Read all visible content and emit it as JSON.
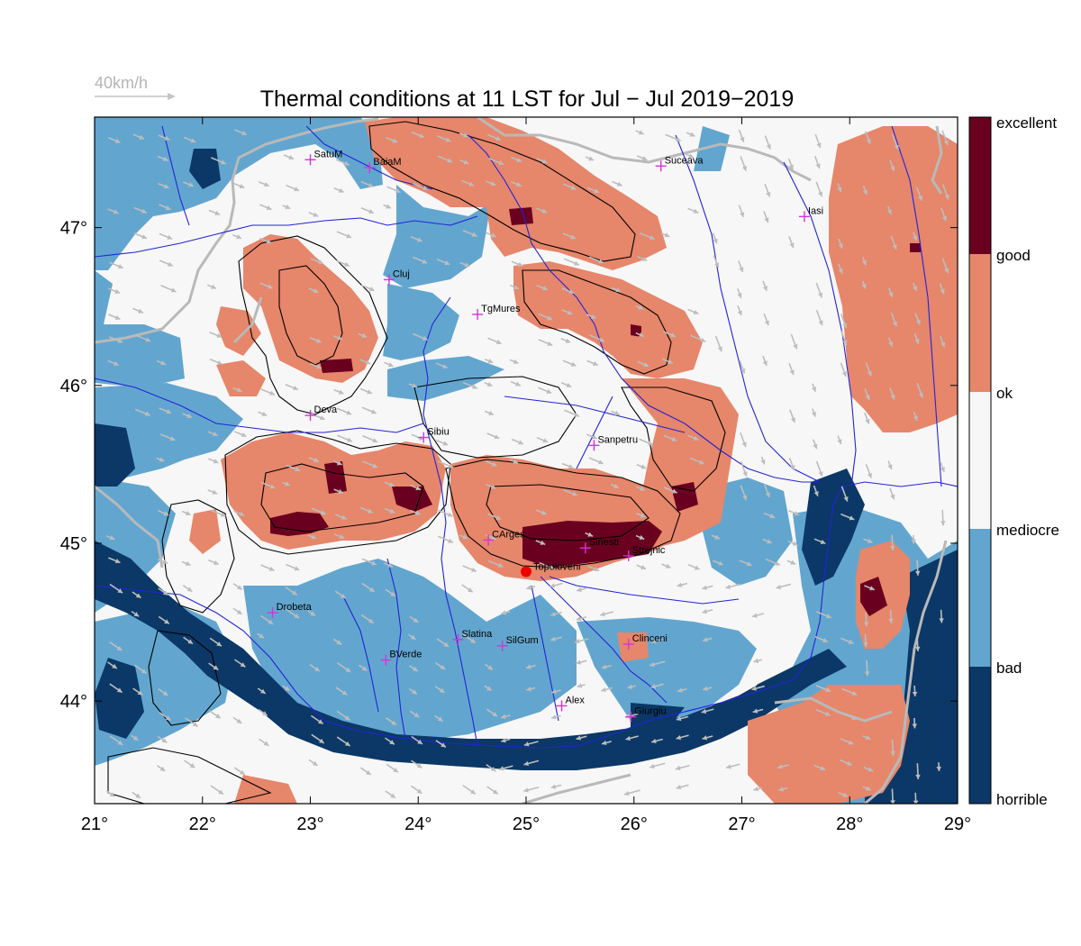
{
  "title": "Thermal conditions at 11 LST for Jul − Jul  2019−2019",
  "wind_scale": {
    "label": "40km/h"
  },
  "map": {
    "lon_range": [
      21,
      29
    ],
    "lat_range": [
      43.35,
      47.7
    ],
    "lon_ticks": [
      "21°",
      "22°",
      "23°",
      "24°",
      "25°",
      "26°",
      "27°",
      "28°",
      "29°"
    ],
    "lat_ticks": [
      "44°",
      "45°",
      "46°",
      "47°"
    ],
    "colors": {
      "horrible": "#0b3866",
      "bad": "#62a6cf",
      "mediocre": "#f7f7f7",
      "good": "#e6866b",
      "excellent": "#6a0020",
      "river": "#2323d8",
      "border": "#b9b9b9",
      "city_marker": "#d733d7",
      "launch_site": "#ee0000"
    },
    "launch_site": {
      "name": "Topoloveni",
      "lon": 25.0,
      "lat": 44.82
    }
  },
  "legend": {
    "labels": [
      "excellent",
      "good",
      "ok",
      "mediocre",
      "bad",
      "horrible"
    ]
  },
  "cities": [
    {
      "name": "SatuM",
      "lon": 23.0,
      "lat": 47.43
    },
    {
      "name": "BaiaM",
      "lon": 23.55,
      "lat": 47.38
    },
    {
      "name": "Suceava",
      "lon": 26.25,
      "lat": 47.39
    },
    {
      "name": "Iasi",
      "lon": 27.58,
      "lat": 47.07
    },
    {
      "name": "Cluj",
      "lon": 23.73,
      "lat": 46.67
    },
    {
      "name": "TgMures",
      "lon": 24.55,
      "lat": 46.45
    },
    {
      "name": "Deva",
      "lon": 23.0,
      "lat": 45.81
    },
    {
      "name": "Sibiu",
      "lon": 24.05,
      "lat": 45.67
    },
    {
      "name": "Sanpetru",
      "lon": 25.63,
      "lat": 45.62
    },
    {
      "name": "CArges",
      "lon": 24.65,
      "lat": 45.02
    },
    {
      "name": "Sinesti",
      "lon": 25.55,
      "lat": 44.97
    },
    {
      "name": "Strejnic",
      "lon": 25.95,
      "lat": 44.92
    },
    {
      "name": "Drobeta",
      "lon": 22.65,
      "lat": 44.56
    },
    {
      "name": "BVerde",
      "lon": 23.7,
      "lat": 44.26
    },
    {
      "name": "Slatina",
      "lon": 24.37,
      "lat": 44.39
    },
    {
      "name": "SilGum",
      "lon": 24.78,
      "lat": 44.35
    },
    {
      "name": "Clinceni",
      "lon": 25.95,
      "lat": 44.36
    },
    {
      "name": "Alex",
      "lon": 25.33,
      "lat": 43.97
    },
    {
      "name": "Giurgiu",
      "lon": 25.97,
      "lat": 43.9
    }
  ]
}
